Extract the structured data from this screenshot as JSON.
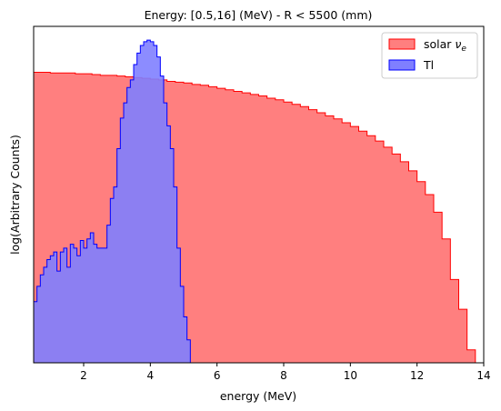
{
  "chart_data": {
    "type": "histogram",
    "title": "Energy: [0.5,16] (MeV) - R < 5500 (mm)",
    "xlabel": "energy (MeV)",
    "ylabel": "log(Arbitrary Counts)",
    "xlim": [
      0.5,
      14
    ],
    "ylim_log10": [
      0,
      4.4
    ],
    "y_scale": "log",
    "x_ticks": [
      2,
      4,
      6,
      8,
      10,
      12,
      14
    ],
    "x_tick_labels": [
      "2",
      "4",
      "6",
      "8",
      "10",
      "12",
      "14"
    ],
    "bin_width": 0.25,
    "legend": {
      "placement": "top-right"
    },
    "series": [
      {
        "name": "solar",
        "legend_label": "solar",
        "legend_math": "ν",
        "legend_sub": "e",
        "color": "#ff0000",
        "fill": "#ff7f7f",
        "bins_start": 0.5,
        "log10_values": [
          3.8,
          3.8,
          3.79,
          3.79,
          3.79,
          3.78,
          3.78,
          3.77,
          3.76,
          3.76,
          3.75,
          3.74,
          3.73,
          3.72,
          3.71,
          3.7,
          3.68,
          3.67,
          3.66,
          3.64,
          3.63,
          3.61,
          3.59,
          3.57,
          3.55,
          3.53,
          3.51,
          3.49,
          3.46,
          3.44,
          3.41,
          3.38,
          3.35,
          3.31,
          3.27,
          3.23,
          3.19,
          3.14,
          3.09,
          3.03,
          2.97,
          2.9,
          2.82,
          2.73,
          2.63,
          2.51,
          2.37,
          2.2,
          1.97,
          1.62,
          1.09,
          0.7,
          0.17
        ]
      },
      {
        "name": "Tl",
        "legend_label": "Tl",
        "color": "#0000ff",
        "fill": "#7f7fff",
        "bins_start": 0.5,
        "bin_width": 0.1,
        "log10_values": [
          0.8,
          1.0,
          1.15,
          1.25,
          1.35,
          1.4,
          1.45,
          1.2,
          1.45,
          1.5,
          1.25,
          1.55,
          1.5,
          1.4,
          1.6,
          1.5,
          1.62,
          1.7,
          1.55,
          1.5,
          1.5,
          1.5,
          1.8,
          2.15,
          2.3,
          2.8,
          3.2,
          3.4,
          3.6,
          3.7,
          3.9,
          4.05,
          4.15,
          4.2,
          4.22,
          4.2,
          4.15,
          4.0,
          3.75,
          3.4,
          3.1,
          2.8,
          2.3,
          1.5,
          1.0,
          0.6,
          0.3
        ]
      }
    ]
  }
}
